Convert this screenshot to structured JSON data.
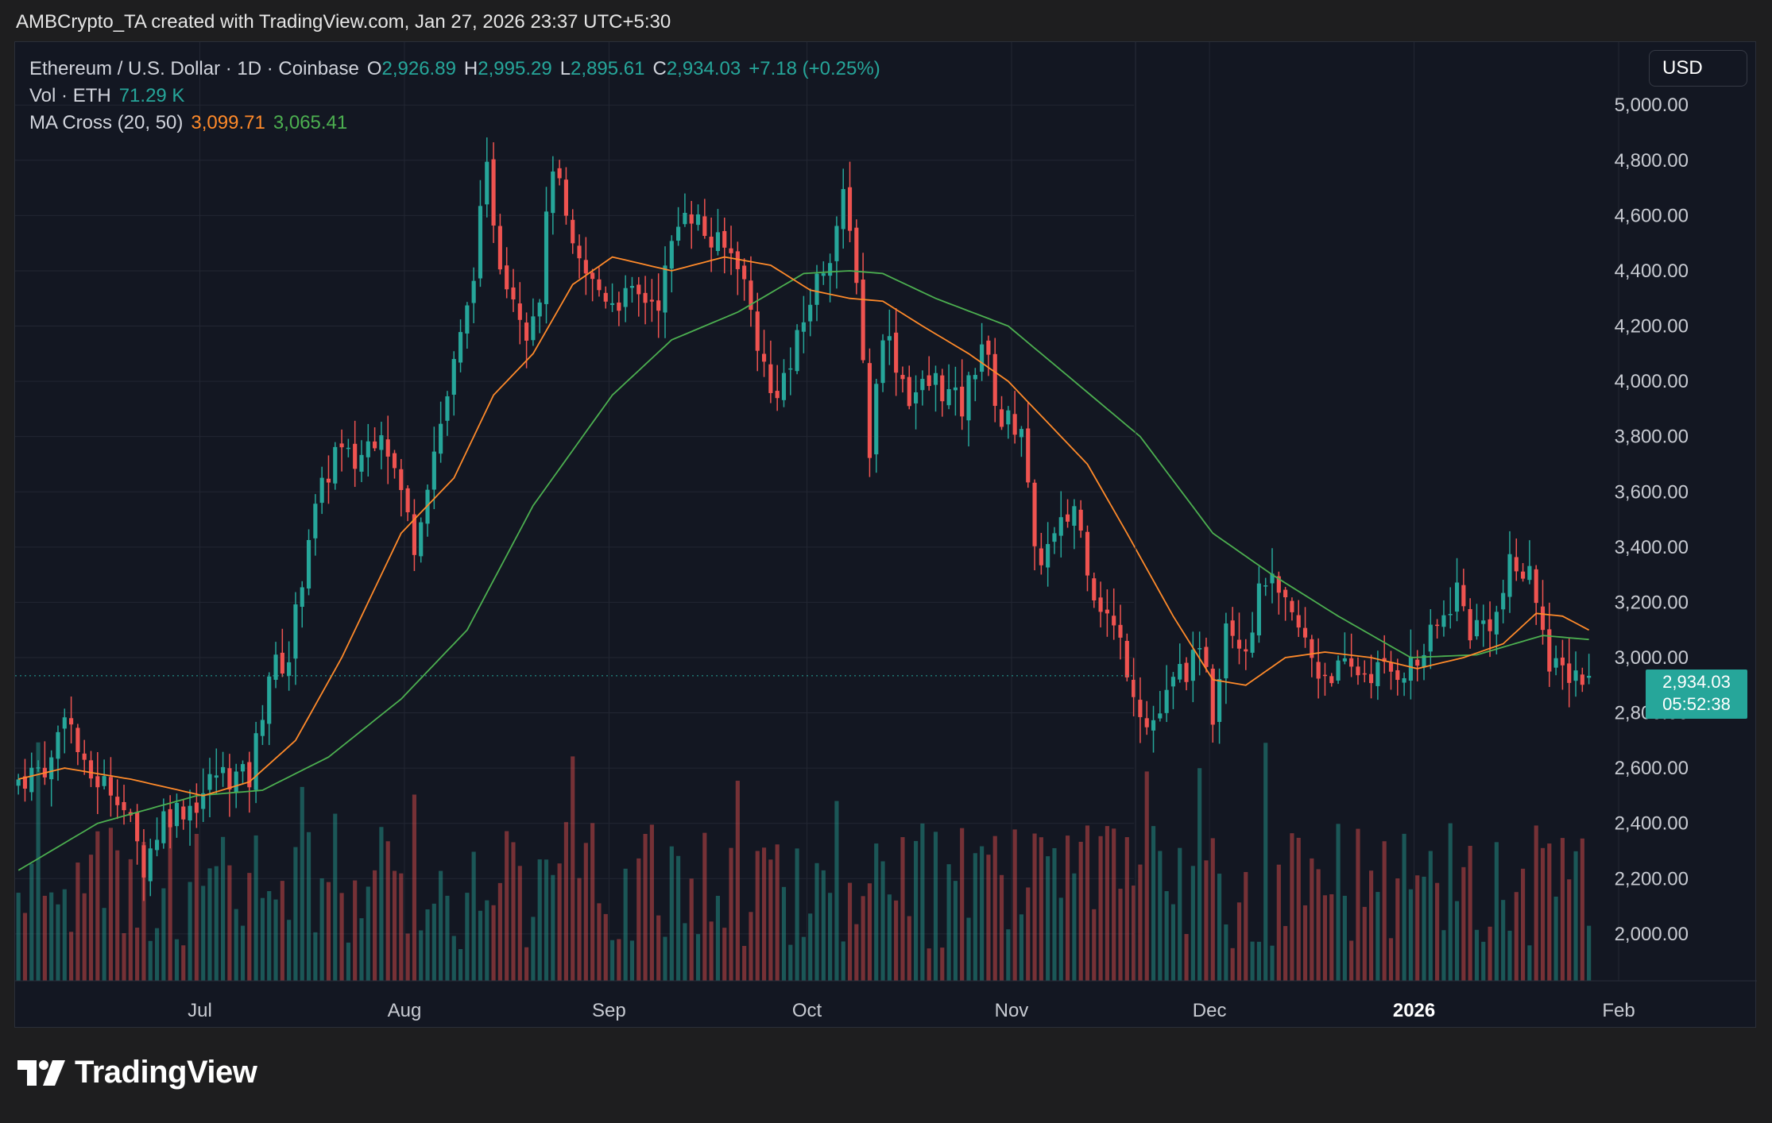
{
  "header": {
    "attribution": "AMBCrypto_TA created with TradingView.com, Jan 27, 2026 23:37 UTC+5:30"
  },
  "legend": {
    "symbol": "Ethereum / U.S. Dollar · 1D · Coinbase",
    "o_label": "O",
    "o_value": "2,926.89",
    "h_label": "H",
    "h_value": "2,995.29",
    "l_label": "L",
    "l_value": "2,895.61",
    "c_label": "C",
    "c_value": "2,934.03",
    "change": "+7.18 (+0.25%)",
    "vol_label": "Vol · ETH",
    "vol_value": "71.29 K",
    "ma_label": "MA Cross (20, 50)",
    "ma20_value": "3,099.71",
    "ma50_value": "3,065.41"
  },
  "currency_button": "USD",
  "price_tag": {
    "price": "2,934.03",
    "countdown": "05:52:38"
  },
  "brand": {
    "name": "TradingView"
  },
  "colors": {
    "up": "#26a69a",
    "down": "#ef5350",
    "ma20": "#ff8a2a",
    "ma50": "#4caf50",
    "background": "#131722"
  },
  "chart_data": {
    "type": "candlestick",
    "title": "Ethereum / U.S. Dollar · 1D · Coinbase",
    "y_ticks": [
      "2,000.00",
      "2,200.00",
      "2,400.00",
      "2,600.00",
      "2,800.00",
      "3,000.00",
      "3,200.00",
      "3,400.00",
      "3,600.00",
      "3,800.00",
      "4,000.00",
      "4,200.00",
      "4,400.00",
      "4,600.00",
      "4,800.00",
      "5,000.00"
    ],
    "ylim": [
      1830,
      5130
    ],
    "x_ticks": [
      {
        "label": "Jul",
        "date": "2025-07-01",
        "bold": false
      },
      {
        "label": "Aug",
        "date": "2025-08-01",
        "bold": false
      },
      {
        "label": "Sep",
        "date": "2025-09-01",
        "bold": false
      },
      {
        "label": "Oct",
        "date": "2025-10-01",
        "bold": false
      },
      {
        "label": "Nov",
        "date": "2025-11-01",
        "bold": false
      },
      {
        "label": "Dec",
        "date": "2025-12-01",
        "bold": false
      },
      {
        "label": "2026",
        "date": "2026-01-01",
        "bold": true
      },
      {
        "label": "Feb",
        "date": "2026-02-01",
        "bold": false
      }
    ],
    "x_range": [
      "2025-06-03",
      "2026-02-01"
    ],
    "close_anchors": [
      [
        "2025-06-03",
        2560
      ],
      [
        "2025-06-08",
        2620
      ],
      [
        "2025-06-10",
        2830
      ],
      [
        "2025-06-13",
        2580
      ],
      [
        "2025-06-18",
        2520
      ],
      [
        "2025-06-22",
        2250
      ],
      [
        "2025-06-25",
        2430
      ],
      [
        "2025-06-30",
        2480
      ],
      [
        "2025-07-03",
        2580
      ],
      [
        "2025-07-08",
        2560
      ],
      [
        "2025-07-11",
        2950
      ],
      [
        "2025-07-14",
        3000
      ],
      [
        "2025-07-17",
        3450
      ],
      [
        "2025-07-21",
        3750
      ],
      [
        "2025-07-24",
        3700
      ],
      [
        "2025-07-28",
        3850
      ],
      [
        "2025-08-02",
        3420
      ],
      [
        "2025-08-04",
        3650
      ],
      [
        "2025-08-08",
        4050
      ],
      [
        "2025-08-10",
        4250
      ],
      [
        "2025-08-13",
        4750
      ],
      [
        "2025-08-15",
        4450
      ],
      [
        "2025-08-19",
        4200
      ],
      [
        "2025-08-21",
        4330
      ],
      [
        "2025-08-23",
        4800
      ],
      [
        "2025-08-26",
        4450
      ],
      [
        "2025-08-29",
        4350
      ],
      [
        "2025-09-01",
        4300
      ],
      [
        "2025-09-05",
        4300
      ],
      [
        "2025-09-08",
        4300
      ],
      [
        "2025-09-12",
        4650
      ],
      [
        "2025-09-16",
        4500
      ],
      [
        "2025-09-20",
        4450
      ],
      [
        "2025-09-25",
        3950
      ],
      [
        "2025-09-28",
        4050
      ],
      [
        "2025-10-01",
        4300
      ],
      [
        "2025-10-04",
        4480
      ],
      [
        "2025-10-06",
        4650
      ],
      [
        "2025-10-08",
        4400
      ],
      [
        "2025-10-10",
        3750
      ],
      [
        "2025-10-12",
        4200
      ],
      [
        "2025-10-16",
        3950
      ],
      [
        "2025-10-20",
        4000
      ],
      [
        "2025-10-24",
        3900
      ],
      [
        "2025-10-27",
        4150
      ],
      [
        "2025-10-30",
        3850
      ],
      [
        "2025-11-02",
        3850
      ],
      [
        "2025-11-04",
        3350
      ],
      [
        "2025-11-07",
        3420
      ],
      [
        "2025-11-10",
        3550
      ],
      [
        "2025-11-13",
        3250
      ],
      [
        "2025-11-17",
        3050
      ],
      [
        "2025-11-21",
        2750
      ],
      [
        "2025-11-23",
        2800
      ],
      [
        "2025-11-26",
        2950
      ],
      [
        "2025-11-30",
        3000
      ],
      [
        "2025-12-01",
        2800
      ],
      [
        "2025-12-03",
        3150
      ],
      [
        "2025-12-06",
        3050
      ],
      [
        "2025-12-09",
        3300
      ],
      [
        "2025-12-11",
        3200
      ],
      [
        "2025-12-14",
        3100
      ],
      [
        "2025-12-17",
        2950
      ],
      [
        "2025-12-19",
        2950
      ],
      [
        "2025-12-23",
        2950
      ],
      [
        "2025-12-28",
        2950
      ],
      [
        "2026-01-01",
        2980
      ],
      [
        "2026-01-05",
        3150
      ],
      [
        "2026-01-07",
        3250
      ],
      [
        "2026-01-09",
        3100
      ],
      [
        "2026-01-13",
        3150
      ],
      [
        "2026-01-15",
        3320
      ],
      [
        "2026-01-18",
        3300
      ],
      [
        "2026-01-20",
        3150
      ],
      [
        "2026-01-21",
        2950
      ],
      [
        "2026-01-25",
        2950
      ],
      [
        "2026-01-26",
        2926.89
      ],
      [
        "2026-01-27",
        2934.03
      ]
    ],
    "ma20_anchors": [
      [
        "2025-06-03",
        2560
      ],
      [
        "2025-06-10",
        2600
      ],
      [
        "2025-06-20",
        2560
      ],
      [
        "2025-07-01",
        2500
      ],
      [
        "2025-07-08",
        2550
      ],
      [
        "2025-07-15",
        2700
      ],
      [
        "2025-07-22",
        3000
      ],
      [
        "2025-07-31",
        3450
      ],
      [
        "2025-08-08",
        3650
      ],
      [
        "2025-08-14",
        3950
      ],
      [
        "2025-08-20",
        4100
      ],
      [
        "2025-08-26",
        4350
      ],
      [
        "2025-09-01",
        4450
      ],
      [
        "2025-09-10",
        4400
      ],
      [
        "2025-09-18",
        4450
      ],
      [
        "2025-09-25",
        4420
      ],
      [
        "2025-10-01",
        4330
      ],
      [
        "2025-10-07",
        4300
      ],
      [
        "2025-10-12",
        4290
      ],
      [
        "2025-10-18",
        4200
      ],
      [
        "2025-10-25",
        4100
      ],
      [
        "2025-10-31",
        4000
      ],
      [
        "2025-11-06",
        3850
      ],
      [
        "2025-11-12",
        3700
      ],
      [
        "2025-11-18",
        3450
      ],
      [
        "2025-11-25",
        3150
      ],
      [
        "2025-12-01",
        2920
      ],
      [
        "2025-12-06",
        2900
      ],
      [
        "2025-12-12",
        3000
      ],
      [
        "2025-12-18",
        3020
      ],
      [
        "2025-12-25",
        3000
      ],
      [
        "2026-01-01",
        2960
      ],
      [
        "2026-01-08",
        3000
      ],
      [
        "2026-01-14",
        3050
      ],
      [
        "2026-01-19",
        3160
      ],
      [
        "2026-01-23",
        3150
      ],
      [
        "2026-01-27",
        3099.71
      ]
    ],
    "ma50_anchors": [
      [
        "2025-06-03",
        2230
      ],
      [
        "2025-06-15",
        2400
      ],
      [
        "2025-06-30",
        2500
      ],
      [
        "2025-07-10",
        2520
      ],
      [
        "2025-07-20",
        2640
      ],
      [
        "2025-07-31",
        2850
      ],
      [
        "2025-08-10",
        3100
      ],
      [
        "2025-08-20",
        3550
      ],
      [
        "2025-09-01",
        3950
      ],
      [
        "2025-09-10",
        4150
      ],
      [
        "2025-09-20",
        4250
      ],
      [
        "2025-09-30",
        4390
      ],
      [
        "2025-10-07",
        4400
      ],
      [
        "2025-10-12",
        4390
      ],
      [
        "2025-10-20",
        4300
      ],
      [
        "2025-10-31",
        4200
      ],
      [
        "2025-11-10",
        4000
      ],
      [
        "2025-11-20",
        3800
      ],
      [
        "2025-12-01",
        3450
      ],
      [
        "2025-12-10",
        3300
      ],
      [
        "2025-12-20",
        3150
      ],
      [
        "2025-12-31",
        3000
      ],
      [
        "2026-01-10",
        3010
      ],
      [
        "2026-01-20",
        3080
      ],
      [
        "2026-01-27",
        3065.41
      ]
    ]
  }
}
